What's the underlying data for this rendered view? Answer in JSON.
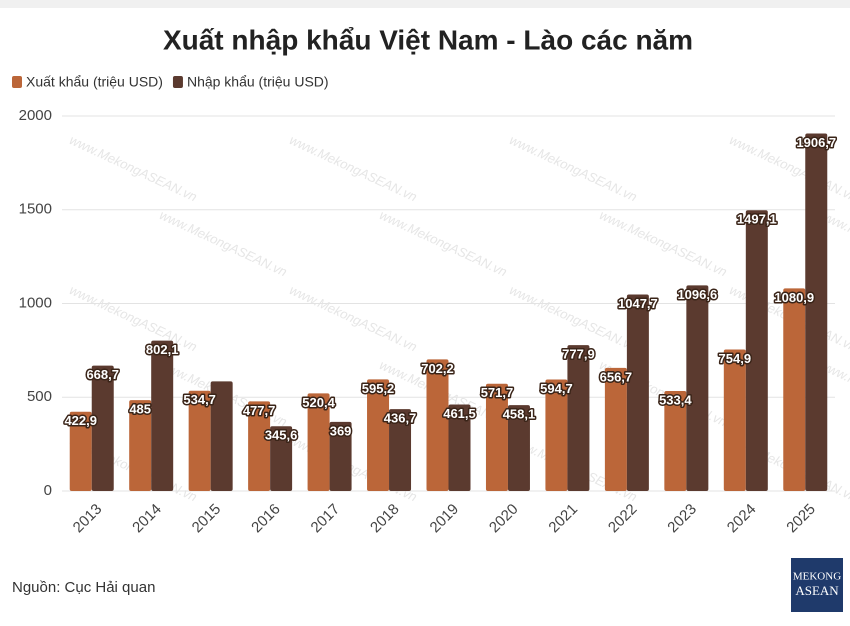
{
  "chart_data": {
    "type": "bar",
    "title": "Xuất nhập khẩu Việt Nam - Lào các năm",
    "categories": [
      "2013",
      "2014",
      "2015",
      "2016",
      "2017",
      "2018",
      "2019",
      "2020",
      "2021",
      "2022",
      "2023",
      "2024",
      "2025"
    ],
    "series": [
      {
        "name": "Xuất khẩu (triệu USD)",
        "color": "#bb6639",
        "values": [
          422.9,
          485,
          534.7,
          477.7,
          520.4,
          595.2,
          702.2,
          571.7,
          594.7,
          656.7,
          533.4,
          754.9,
          1080.9
        ],
        "value_labels": [
          "422,9",
          "485",
          "534,7",
          "477,7",
          "520,4",
          "595,2",
          "702,2",
          "571,7",
          "594,7",
          "656,7",
          "533,4",
          "754,9",
          "1080,9"
        ]
      },
      {
        "name": "Nhập khẩu (triệu USD)",
        "color": "#5b3a2f",
        "values": [
          668.7,
          802.1,
          585,
          345.6,
          369,
          436.7,
          461.5,
          458.1,
          777.9,
          1047.7,
          1096.6,
          1497.1,
          1906.7
        ],
        "value_labels": [
          "668,7",
          "802,1",
          null,
          "345,6",
          "369",
          "436,7",
          "461,5",
          "458,1",
          "777,9",
          "1047,7",
          "1096,6",
          "1497,1",
          "1906,7"
        ]
      }
    ],
    "ylim": [
      0,
      2000
    ],
    "yticks": [
      0,
      500,
      1000,
      1500,
      2000
    ],
    "grid": true,
    "source": "Nguồn: Cục Hải quan",
    "logo": [
      "MEKONG",
      "ASEAN"
    ],
    "watermark": "www.MekongASEAN.vn"
  }
}
